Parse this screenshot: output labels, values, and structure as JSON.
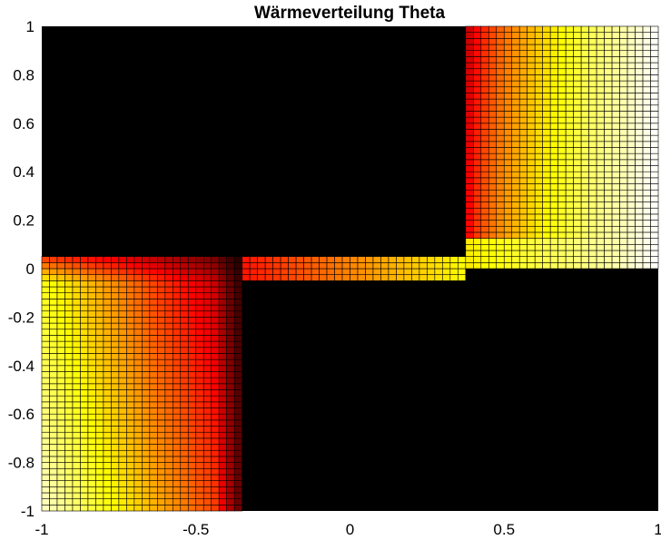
{
  "chart_data": {
    "type": "heatmap",
    "title": "Wärmeverteilung Theta",
    "xlabel": "",
    "ylabel": "",
    "xlim": [
      -1,
      1
    ],
    "ylim": [
      -1,
      1
    ],
    "x_ticks": [
      "-1",
      "-0.5",
      "0",
      "0.5",
      "1"
    ],
    "y_ticks": [
      "1",
      "0.8",
      "0.6",
      "0.4",
      "0.2",
      "0",
      "-0.2",
      "-0.4",
      "-0.6",
      "-0.8",
      "-1"
    ],
    "grid_cells": 80,
    "colormap": "hot",
    "background_color": "#000000",
    "mesh_line_color": "#000000",
    "value_range": [
      0,
      1
    ],
    "regions": [
      {
        "name": "top-right arm",
        "x": [
          0.375,
          1.0
        ],
        "y": [
          0.0,
          1.0
        ],
        "value_min": 0.3,
        "value_max": 1.0
      },
      {
        "name": "horizontal channel",
        "x": [
          -0.35,
          0.375
        ],
        "y": [
          -0.06,
          0.06
        ],
        "value_min": 0.4,
        "value_max": 0.75
      },
      {
        "name": "bottom-left arm",
        "x": [
          -1.0,
          -0.35
        ],
        "y": [
          -1.0,
          0.06
        ],
        "value_min": 0.08,
        "value_max": 0.85
      }
    ]
  }
}
